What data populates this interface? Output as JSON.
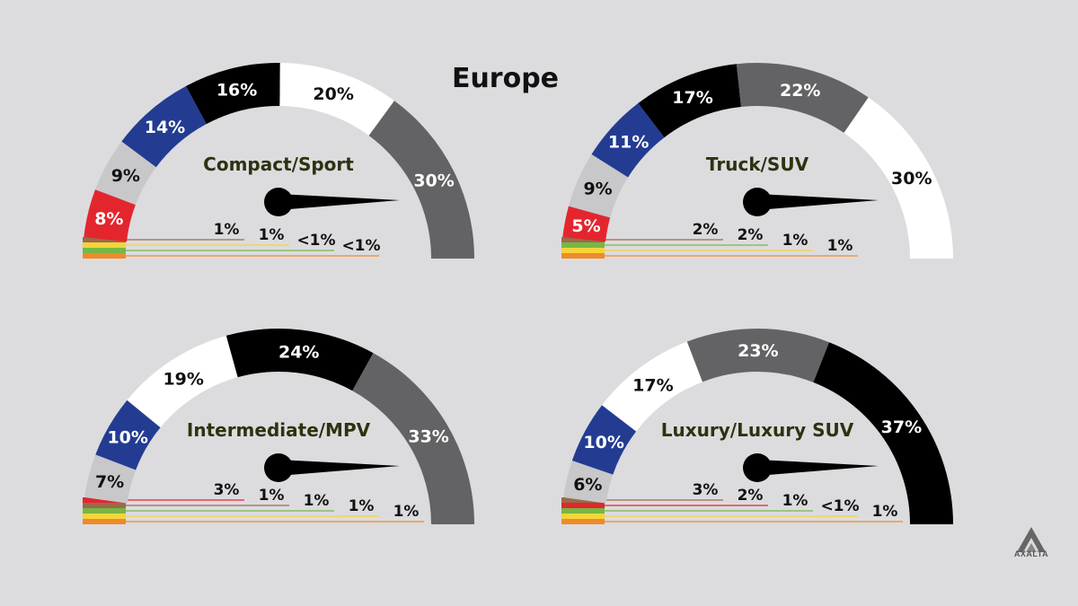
{
  "title": "Europe",
  "logo_text": "AXALTA",
  "colors": {
    "gray": "#636365",
    "white": "#ffffff",
    "black": "#000000",
    "blue": "#233c92",
    "silver": "#c8c8ca",
    "red": "#e3262e",
    "brown": "#9b6a4a",
    "green": "#76b843",
    "yellow": "#f5d43a",
    "orange": "#ef8a2b",
    "name_text": "#2c3310",
    "background": "#dcdcdf"
  },
  "chart_data": [
    {
      "type": "gauge",
      "name": "Compact/Sport",
      "segments": [
        {
          "label": "8%",
          "value": 8,
          "color": "red"
        },
        {
          "label": "9%",
          "value": 9,
          "color": "silver"
        },
        {
          "label": "14%",
          "value": 14,
          "color": "blue"
        },
        {
          "label": "16%",
          "value": 16,
          "color": "black"
        },
        {
          "label": "20%",
          "value": 20,
          "color": "white"
        },
        {
          "label": "30%",
          "value": 30,
          "color": "gray"
        }
      ],
      "small": [
        {
          "label": "1%",
          "value": 1,
          "color": "brown"
        },
        {
          "label": "1%",
          "value": 1,
          "color": "yellow"
        },
        {
          "label": "<1%",
          "value": 0.5,
          "color": "green"
        },
        {
          "label": "<1%",
          "value": 0.5,
          "color": "orange"
        }
      ]
    },
    {
      "type": "gauge",
      "name": "Truck/SUV",
      "segments": [
        {
          "label": "5%",
          "value": 5,
          "color": "red"
        },
        {
          "label": "9%",
          "value": 9,
          "color": "silver"
        },
        {
          "label": "11%",
          "value": 11,
          "color": "blue"
        },
        {
          "label": "17%",
          "value": 17,
          "color": "black"
        },
        {
          "label": "22%",
          "value": 22,
          "color": "gray"
        },
        {
          "label": "30%",
          "value": 30,
          "color": "white"
        }
      ],
      "small": [
        {
          "label": "2%",
          "value": 2,
          "color": "brown"
        },
        {
          "label": "2%",
          "value": 2,
          "color": "green"
        },
        {
          "label": "1%",
          "value": 1,
          "color": "yellow"
        },
        {
          "label": "1%",
          "value": 1,
          "color": "orange"
        }
      ]
    },
    {
      "type": "gauge",
      "name": "Intermediate/MPV",
      "segments": [
        {
          "label": "7%",
          "value": 7,
          "color": "silver"
        },
        {
          "label": "10%",
          "value": 10,
          "color": "blue"
        },
        {
          "label": "19%",
          "value": 19,
          "color": "white"
        },
        {
          "label": "24%",
          "value": 24,
          "color": "black"
        },
        {
          "label": "33%",
          "value": 33,
          "color": "gray"
        }
      ],
      "small": [
        {
          "label": "3%",
          "value": 3,
          "color": "red"
        },
        {
          "label": "1%",
          "value": 1,
          "color": "brown"
        },
        {
          "label": "1%",
          "value": 1,
          "color": "green"
        },
        {
          "label": "1%",
          "value": 1,
          "color": "yellow"
        },
        {
          "label": "1%",
          "value": 1,
          "color": "orange"
        }
      ]
    },
    {
      "type": "gauge",
      "name": "Luxury/Luxury SUV",
      "segments": [
        {
          "label": "6%",
          "value": 6,
          "color": "silver"
        },
        {
          "label": "10%",
          "value": 10,
          "color": "blue"
        },
        {
          "label": "17%",
          "value": 17,
          "color": "white"
        },
        {
          "label": "23%",
          "value": 23,
          "color": "gray"
        },
        {
          "label": "37%",
          "value": 37,
          "color": "black"
        }
      ],
      "small": [
        {
          "label": "3%",
          "value": 3,
          "color": "brown"
        },
        {
          "label": "2%",
          "value": 2,
          "color": "red"
        },
        {
          "label": "1%",
          "value": 1,
          "color": "green"
        },
        {
          "label": "<1%",
          "value": 0.5,
          "color": "yellow"
        },
        {
          "label": "1%",
          "value": 1,
          "color": "orange"
        }
      ]
    }
  ]
}
